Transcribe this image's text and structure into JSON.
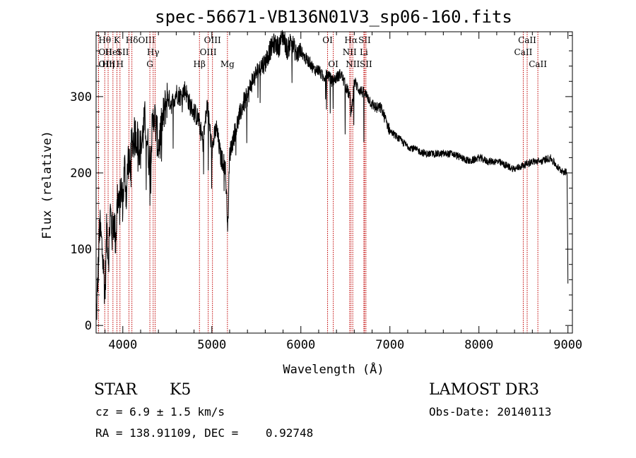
{
  "chart_data": {
    "type": "line",
    "title": "spec-56671-VB136N01V3_sp06-160.fits",
    "xlabel": "Wavelength (Å)",
    "ylabel": "Flux (relative)",
    "xlim": [
      3700,
      9050
    ],
    "ylim": [
      -10,
      385
    ],
    "xticks": [
      4000,
      5000,
      6000,
      7000,
      8000,
      9000
    ],
    "yticks": [
      0,
      100,
      200,
      300
    ],
    "series": [
      {
        "name": "flux",
        "x": [
          3700,
          3720,
          3740,
          3760,
          3780,
          3800,
          3820,
          3840,
          3860,
          3880,
          3900,
          3920,
          3940,
          3960,
          3980,
          4000,
          4020,
          4040,
          4060,
          4080,
          4100,
          4150,
          4200,
          4250,
          4300,
          4350,
          4400,
          4450,
          4500,
          4550,
          4600,
          4650,
          4700,
          4750,
          4800,
          4850,
          4900,
          4950,
          5000,
          5050,
          5100,
          5150,
          5180,
          5200,
          5250,
          5300,
          5350,
          5400,
          5450,
          5500,
          5550,
          5600,
          5650,
          5700,
          5750,
          5800,
          5850,
          5890,
          5950,
          6000,
          6050,
          6100,
          6150,
          6200,
          6250,
          6300,
          6350,
          6400,
          6450,
          6500,
          6550,
          6563,
          6600,
          6650,
          6700,
          6750,
          6800,
          6850,
          6900,
          6950,
          7000,
          7100,
          7200,
          7300,
          7400,
          7500,
          7600,
          7700,
          7800,
          7900,
          8000,
          8100,
          8200,
          8300,
          8400,
          8500,
          8600,
          8700,
          8800,
          8900,
          8990,
          9000
        ],
        "y": [
          5,
          60,
          130,
          110,
          80,
          40,
          130,
          90,
          150,
          120,
          140,
          110,
          170,
          150,
          180,
          160,
          210,
          170,
          220,
          200,
          240,
          250,
          230,
          270,
          215,
          280,
          235,
          270,
          300,
          290,
          305,
          300,
          310,
          290,
          280,
          270,
          240,
          290,
          230,
          260,
          220,
          210,
          130,
          225,
          250,
          270,
          290,
          300,
          320,
          330,
          340,
          345,
          360,
          370,
          365,
          380,
          360,
          375,
          355,
          360,
          350,
          345,
          335,
          335,
          325,
          330,
          320,
          325,
          330,
          315,
          300,
          275,
          320,
          310,
          305,
          300,
          290,
          285,
          285,
          270,
          255,
          245,
          235,
          230,
          225,
          225,
          225,
          225,
          220,
          215,
          220,
          215,
          215,
          210,
          205,
          210,
          215,
          215,
          220,
          205,
          200,
          60
        ]
      }
    ],
    "emission_lines": [
      {
        "label": "Hθ",
        "x": 3797,
        "row": 1,
        "anchor": "middle"
      },
      {
        "label": "OII",
        "x": 3727,
        "row": 2,
        "anchor": "start"
      },
      {
        "label": "OIII",
        "x": 3727,
        "row": 3,
        "anchor": "start"
      },
      {
        "label": "K",
        "x": 3934,
        "row": 1,
        "anchor": "middle"
      },
      {
        "label": "HeI",
        "x": 3889,
        "row": 2,
        "anchor": "middle"
      },
      {
        "label": "Hη",
        "x": 3835,
        "row": 3,
        "anchor": "middle"
      },
      {
        "label": "SII",
        "x": 4069,
        "row": 2,
        "anchor": "end"
      },
      {
        "label": "H",
        "x": 3968,
        "row": 3,
        "anchor": "middle"
      },
      {
        "label": "Hδ",
        "x": 4102,
        "row": 1,
        "anchor": "middle"
      },
      {
        "label": "OIII",
        "x": 4363,
        "row": 1,
        "anchor": "end"
      },
      {
        "label": "Hγ",
        "x": 4341,
        "row": 2,
        "anchor": "middle"
      },
      {
        "label": "G",
        "x": 4304,
        "row": 3,
        "anchor": "middle"
      },
      {
        "label": "Hβ",
        "x": 4861,
        "row": 3,
        "anchor": "middle"
      },
      {
        "label": "OIII",
        "x": 5007,
        "row": 1,
        "anchor": "middle"
      },
      {
        "label": "OIII",
        "x": 4959,
        "row": 2,
        "anchor": "middle"
      },
      {
        "label": "Mg",
        "x": 5175,
        "row": 3,
        "anchor": "middle"
      },
      {
        "label": "OI",
        "x": 6300,
        "row": 1,
        "anchor": "middle"
      },
      {
        "label": "OI",
        "x": 6364,
        "row": 3,
        "anchor": "middle"
      },
      {
        "label": "Hα",
        "x": 6563,
        "row": 1,
        "anchor": "middle"
      },
      {
        "label": "SII",
        "x": 6716,
        "row": 1,
        "anchor": "middle"
      },
      {
        "label": "NII",
        "x": 6548,
        "row": 2,
        "anchor": "middle"
      },
      {
        "label": "Li",
        "x": 6708,
        "row": 2,
        "anchor": "middle"
      },
      {
        "label": "NII",
        "x": 6583,
        "row": 3,
        "anchor": "middle"
      },
      {
        "label": "SII",
        "x": 6731,
        "row": 3,
        "anchor": "middle"
      },
      {
        "label": "CaII",
        "x": 8542,
        "row": 1,
        "anchor": "middle"
      },
      {
        "label": "CaII",
        "x": 8498,
        "row": 2,
        "anchor": "middle"
      },
      {
        "label": "CaII",
        "x": 8662,
        "row": 3,
        "anchor": "middle"
      }
    ]
  },
  "info": {
    "object_class": "STAR",
    "subclass": "K5",
    "survey": "LAMOST DR3",
    "cz": "cz = 6.9 ± 1.5 km/s",
    "obs_date": "Obs-Date: 20140113",
    "coords": "RA = 138.91109, DEC =    0.92748"
  },
  "colors": {
    "spectrum": "#000000",
    "line_markers": "#c00000"
  }
}
